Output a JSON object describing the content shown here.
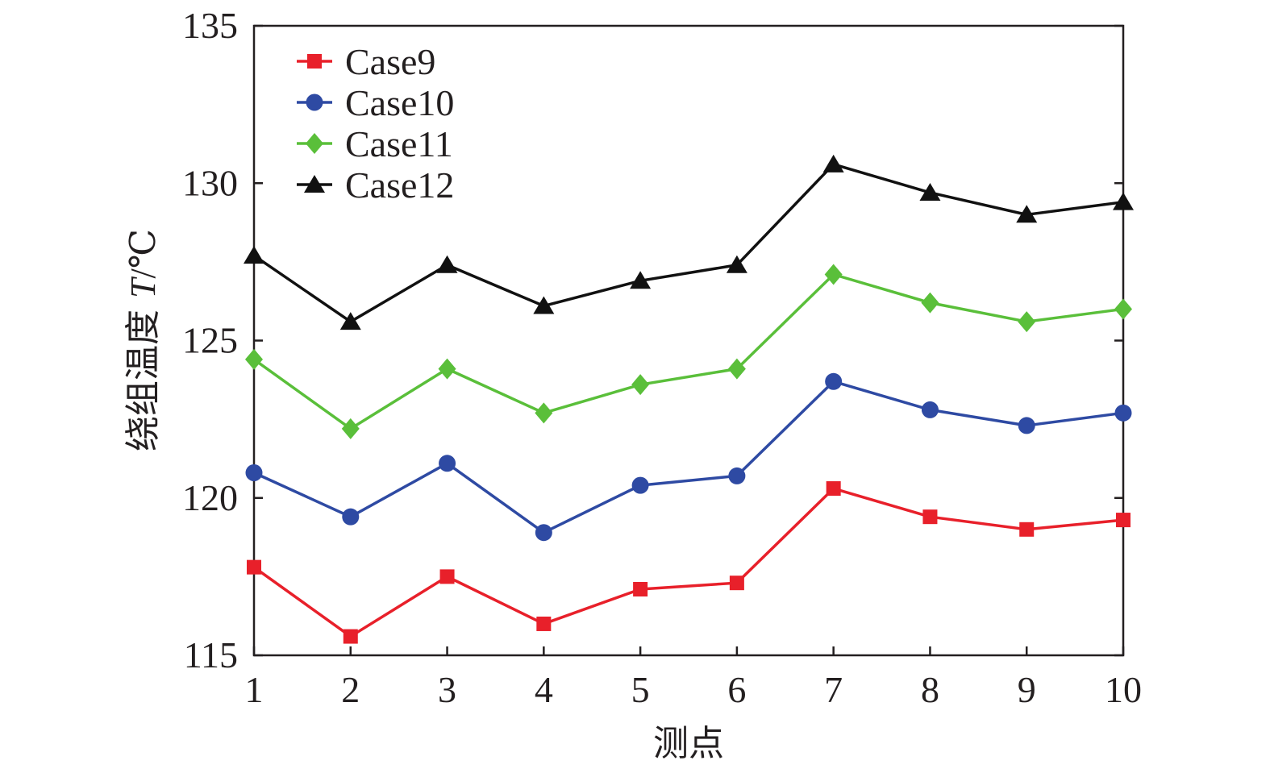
{
  "chart_data": {
    "type": "line",
    "x": [
      1,
      2,
      3,
      4,
      5,
      6,
      7,
      8,
      9,
      10
    ],
    "xticks": [
      "1",
      "2",
      "3",
      "4",
      "5",
      "6",
      "7",
      "8",
      "9",
      "10"
    ],
    "yticks": [
      "115",
      "120",
      "125",
      "130",
      "135"
    ],
    "ylim": [
      115,
      135
    ],
    "xlim": [
      1,
      10
    ],
    "xlabel": "测点",
    "ylabel": {
      "prefix": "绕组温度 ",
      "symbol": "T",
      "unit": "/℃"
    },
    "legend_position": "top-left",
    "grid": false,
    "series": [
      {
        "name": "Case9",
        "color": "#e8202a",
        "marker": "square",
        "values": [
          117.8,
          115.6,
          117.5,
          116.0,
          117.1,
          117.3,
          120.3,
          119.4,
          119.0,
          119.3
        ]
      },
      {
        "name": "Case10",
        "color": "#2e4aa3",
        "marker": "circle",
        "values": [
          120.8,
          119.4,
          121.1,
          118.9,
          120.4,
          120.7,
          123.7,
          122.8,
          122.3,
          122.7
        ]
      },
      {
        "name": "Case11",
        "color": "#5abf3a",
        "marker": "diamond",
        "values": [
          124.4,
          122.2,
          124.1,
          122.7,
          123.6,
          124.1,
          127.1,
          126.2,
          125.6,
          126.0
        ]
      },
      {
        "name": "Case12",
        "color": "#111111",
        "marker": "triangle",
        "values": [
          127.7,
          125.6,
          127.4,
          126.1,
          126.9,
          127.4,
          130.6,
          129.7,
          129.0,
          129.4
        ]
      }
    ]
  }
}
